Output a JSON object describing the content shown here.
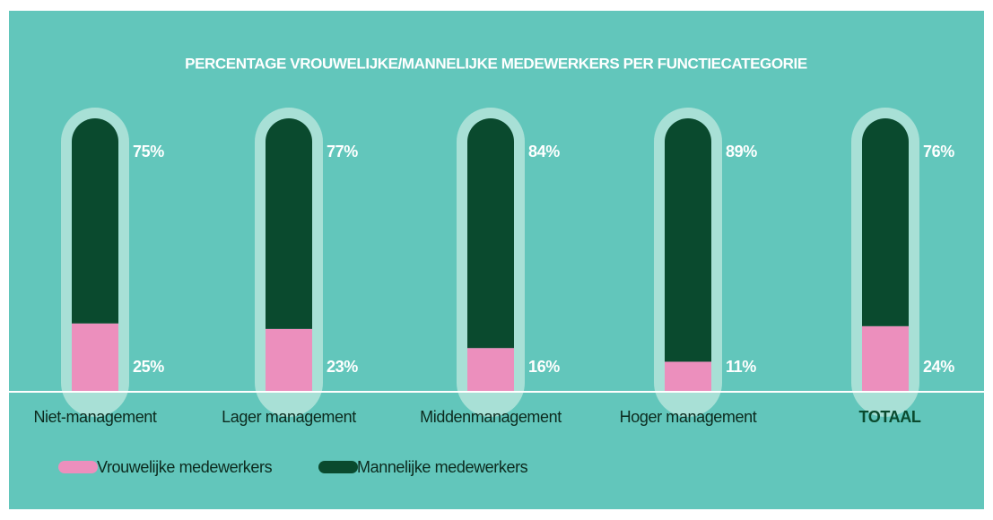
{
  "chart_data": {
    "type": "stacked_bar",
    "title": "PERCENTAGE VROUWELIJKE/MANNELIJKE MEDEWERKERS PER FUNCTIECATEGORIE",
    "categories": [
      "Niet-management",
      "Lager management",
      "Middenmanagement",
      "Hoger management",
      "TOTAAL"
    ],
    "series": [
      {
        "name": "Vrouwelijke medewerkers",
        "color": "#ec8fbd",
        "values": [
          25,
          23,
          16,
          11,
          24
        ],
        "value_labels": [
          "25%",
          "23%",
          "16%",
          "11%",
          "24%"
        ]
      },
      {
        "name": "Mannelijke medewerkers",
        "color": "#0a4a2e",
        "values": [
          75,
          77,
          84,
          89,
          76
        ],
        "value_labels": [
          "75%",
          "77%",
          "84%",
          "89%",
          "76%"
        ]
      }
    ],
    "ylim": [
      0,
      100
    ]
  }
}
